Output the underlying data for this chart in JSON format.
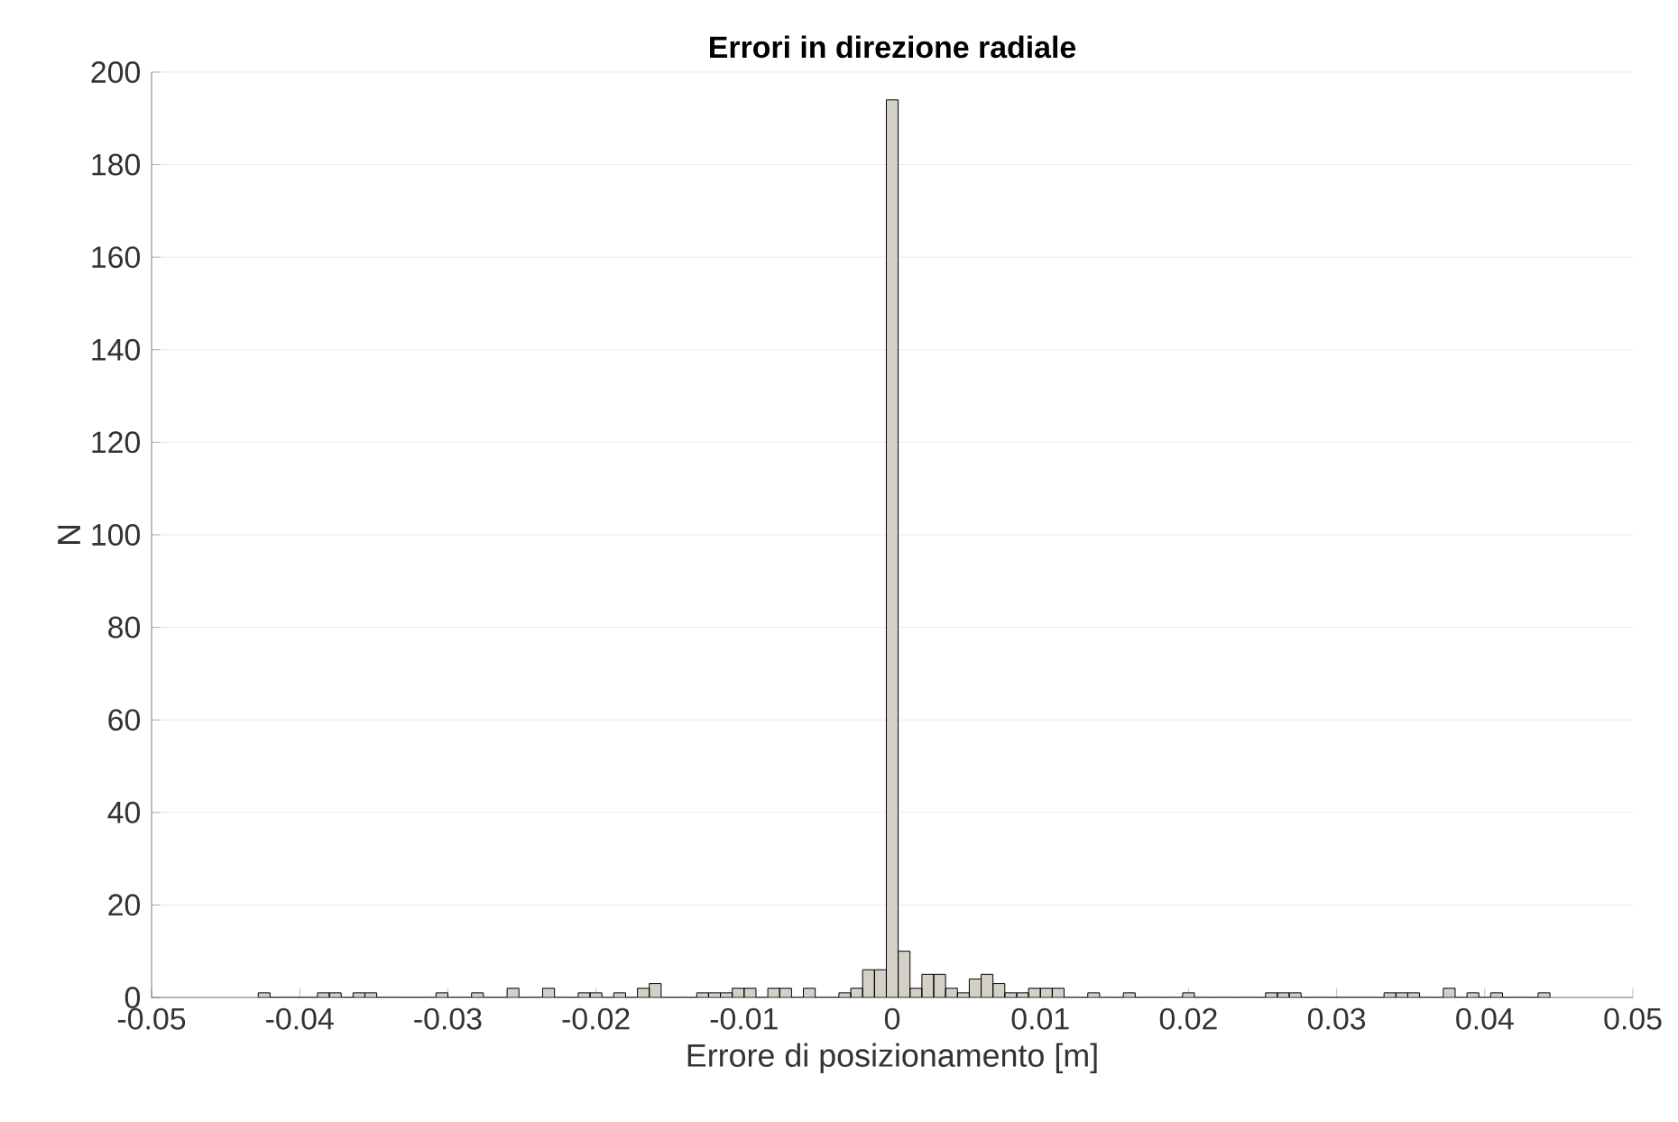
{
  "chart_data": {
    "type": "histogram",
    "title": "Errori in direzione radiale",
    "xlabel": "Errore di posizionamento [m]",
    "ylabel": "N",
    "color": "#d4d0c8",
    "bins": [
      -0.0428,
      -0.042,
      -0.0412,
      -0.0404,
      -0.0396,
      -0.0388,
      -0.038,
      -0.0372,
      -0.0364,
      -0.0356,
      -0.0348,
      -0.034,
      -0.0332,
      -0.0324,
      -0.0316,
      -0.0308,
      -0.03,
      -0.0292,
      -0.0284,
      -0.0276,
      -0.0268,
      -0.026,
      -0.0252,
      -0.0244,
      -0.0236,
      -0.0228,
      -0.022,
      -0.0212,
      -0.0204,
      -0.0196,
      -0.0188,
      -0.018,
      -0.0172,
      -0.0164,
      -0.0156,
      -0.0148,
      -0.014,
      -0.0132,
      -0.0124,
      -0.0116,
      -0.0108,
      -0.01,
      -0.0092,
      -0.0084,
      -0.0076,
      -0.0068,
      -0.006,
      -0.0052,
      -0.0044,
      -0.0036,
      -0.0028,
      -0.002,
      -0.0012,
      -0.0004,
      0.0004,
      0.0012,
      0.002,
      0.0028,
      0.0036,
      0.0044,
      0.0052,
      0.006,
      0.0068,
      0.0076,
      0.0084,
      0.0092,
      0.01,
      0.0108,
      0.0116,
      0.0124,
      0.0132,
      0.014,
      0.0148,
      0.0156,
      0.0164,
      0.0172,
      0.018,
      0.0188,
      0.0196,
      0.0204,
      0.0212,
      0.022,
      0.0228,
      0.0236,
      0.0244,
      0.0252,
      0.026,
      0.0268,
      0.0276,
      0.0284,
      0.0292,
      0.03,
      0.0308,
      0.0316,
      0.0324,
      0.0332,
      0.034,
      0.0348,
      0.0356,
      0.0364,
      0.0372,
      0.038,
      0.0388,
      0.0396,
      0.0404,
      0.0412,
      0.042,
      0.0428,
      0.0436,
      0.0444
    ],
    "values": [
      1,
      0,
      0,
      0,
      0,
      1,
      1,
      0,
      1,
      1,
      0,
      0,
      0,
      0,
      0,
      1,
      0,
      0,
      1,
      0,
      0,
      2,
      0,
      0,
      2,
      0,
      0,
      1,
      1,
      0,
      1,
      0,
      2,
      3,
      0,
      0,
      0,
      1,
      1,
      1,
      2,
      2,
      0,
      2,
      2,
      0,
      2,
      0,
      0,
      1,
      2,
      6,
      6,
      194,
      10,
      2,
      5,
      5,
      2,
      1,
      4,
      5,
      3,
      1,
      1,
      2,
      2,
      2,
      0,
      0,
      1,
      0,
      0,
      1,
      0,
      0,
      0,
      0,
      1,
      0,
      0,
      0,
      0,
      0,
      0,
      1,
      1,
      1,
      0,
      0,
      0,
      0,
      0,
      0,
      0,
      1,
      1,
      1,
      0,
      0,
      2,
      0,
      1,
      0,
      1,
      0,
      0,
      0,
      1
    ],
    "xlim": [
      -0.05,
      0.05
    ],
    "ylim": [
      0,
      200
    ],
    "xticks": [
      -0.05,
      -0.04,
      -0.03,
      -0.02,
      -0.01,
      0,
      0.01,
      0.02,
      0.03,
      0.04,
      0.05
    ],
    "yticks": [
      0,
      20,
      40,
      60,
      80,
      100,
      120,
      140,
      160,
      180,
      200
    ],
    "grid": "y"
  }
}
